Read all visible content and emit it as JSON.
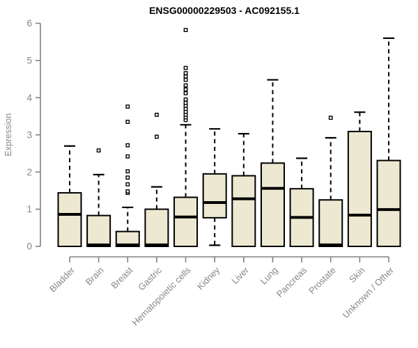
{
  "title": "ENSG00000229503 - AC092155.1",
  "colors": {
    "background": "#ffffff",
    "box_fill": "#EDE8D1",
    "box_border": "#000000",
    "median": "#000000",
    "whisker": "#000000",
    "outlier": "#000000",
    "axis": "#808080",
    "tick_label": "#878787",
    "axis_label": "#878787",
    "title": "#000000"
  },
  "chart_data": {
    "type": "boxplot",
    "title": "ENSG00000229503 - AC092155.1",
    "xlabel": "",
    "ylabel": "Expression",
    "ylim": [
      0,
      6
    ],
    "yticks": [
      0,
      1,
      2,
      3,
      4,
      5,
      6
    ],
    "grid": false,
    "legend": "none",
    "x_label_rotation_deg": 45,
    "categories": [
      "Bladder",
      "Brain",
      "Breast",
      "Gastric",
      "Hematopoietic cells",
      "Kidney",
      "Liver",
      "Lung",
      "Pancreas",
      "Prostate",
      "Skin",
      "Unknown / Other"
    ],
    "boxes": [
      {
        "category": "Bladder",
        "low": 0,
        "q1": 0,
        "median": 0.86,
        "q3": 1.44,
        "high": 2.7,
        "outliers": []
      },
      {
        "category": "Brain",
        "low": 0,
        "q1": 0,
        "median": 0.04,
        "q3": 0.83,
        "high": 1.93,
        "outliers": [
          2.58
        ]
      },
      {
        "category": "Breast",
        "low": 0,
        "q1": 0,
        "median": 0.04,
        "q3": 0.4,
        "high": 1.05,
        "outliers": [
          1.44,
          1.48,
          1.67,
          1.85,
          2.02,
          2.42,
          2.72,
          3.35,
          3.76
        ]
      },
      {
        "category": "Gastric",
        "low": 0,
        "q1": 0,
        "median": 0.04,
        "q3": 1.0,
        "high": 1.6,
        "outliers": [
          2.95,
          3.54
        ]
      },
      {
        "category": "Hematopoietic cells",
        "low": 0,
        "q1": 0,
        "median": 0.79,
        "q3": 1.32,
        "high": 3.27,
        "outliers": [
          3.4,
          3.47,
          3.54,
          3.62,
          3.7,
          3.78,
          3.86,
          3.95,
          4.12,
          4.22,
          4.33,
          4.48,
          4.57,
          4.66,
          4.8,
          5.82
        ]
      },
      {
        "category": "Kidney",
        "low": 0.03,
        "q1": 0.77,
        "median": 1.18,
        "q3": 1.95,
        "high": 3.16,
        "outliers": []
      },
      {
        "category": "Liver",
        "low": 0,
        "q1": 0,
        "median": 1.28,
        "q3": 1.9,
        "high": 3.03,
        "outliers": []
      },
      {
        "category": "Lung",
        "low": 0,
        "q1": 0,
        "median": 1.56,
        "q3": 2.24,
        "high": 4.48,
        "outliers": []
      },
      {
        "category": "Pancreas",
        "low": 0,
        "q1": 0,
        "median": 0.78,
        "q3": 1.55,
        "high": 2.37,
        "outliers": []
      },
      {
        "category": "Prostate",
        "low": 0,
        "q1": 0,
        "median": 0.04,
        "q3": 1.25,
        "high": 2.92,
        "outliers": [
          3.46
        ]
      },
      {
        "category": "Skin",
        "low": 0,
        "q1": 0,
        "median": 0.84,
        "q3": 3.09,
        "high": 3.61,
        "outliers": []
      },
      {
        "category": "Unknown / Other",
        "low": 0,
        "q1": 0,
        "median": 0.99,
        "q3": 2.31,
        "high": 5.6,
        "outliers": []
      }
    ]
  }
}
